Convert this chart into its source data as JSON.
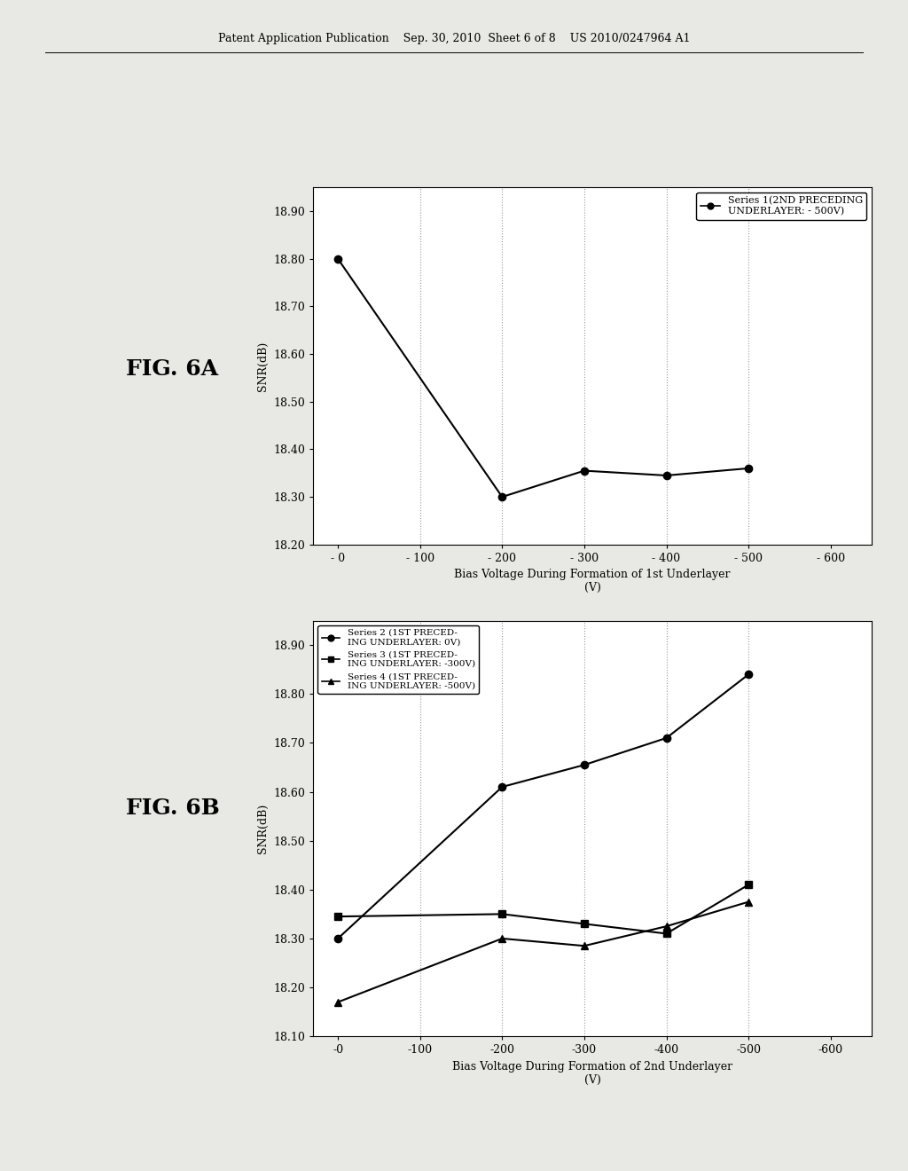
{
  "header_text": "Patent Application Publication    Sep. 30, 2010  Sheet 6 of 8    US 2010/0247964 A1",
  "fig6a": {
    "xlabel_line1": "Bias Voltage During Formation of 1st Underlayer",
    "xlabel_line2": "(V)",
    "ylabel": "SNR(dB)",
    "x_positions": [
      0,
      1,
      2,
      3,
      4,
      5,
      6
    ],
    "x_labels": [
      "- 0",
      "- 100",
      "- 200",
      "- 300",
      "- 400",
      "- 500",
      "- 600"
    ],
    "xlim": [
      -0.3,
      6.5
    ],
    "ylim": [
      18.2,
      18.95
    ],
    "yticks": [
      18.2,
      18.3,
      18.4,
      18.5,
      18.6,
      18.7,
      18.8,
      18.9
    ],
    "series1": {
      "label": "Series 1(2ND PRECEDING\nUNDERLAYER: - 500V)",
      "x": [
        0,
        2,
        3,
        4,
        5
      ],
      "y": [
        18.8,
        18.3,
        18.355,
        18.345,
        18.36
      ],
      "color": "black",
      "marker": "o",
      "markersize": 6,
      "linewidth": 1.5
    },
    "fig_label": "FIG. 6A",
    "grid_x_positions": [
      1,
      2,
      3,
      4,
      5
    ]
  },
  "fig6b": {
    "xlabel_line1": "Bias Voltage During Formation of 2nd Underlayer",
    "xlabel_line2": "(V)",
    "ylabel": "SNR(dB)",
    "x_positions": [
      0,
      1,
      2,
      3,
      4,
      5,
      6
    ],
    "x_labels": [
      "-0",
      "-100",
      "-200",
      "-300",
      "-400",
      "-500",
      "-600"
    ],
    "xlim": [
      -0.3,
      6.5
    ],
    "ylim": [
      18.1,
      18.95
    ],
    "yticks": [
      18.1,
      18.2,
      18.3,
      18.4,
      18.5,
      18.6,
      18.7,
      18.8,
      18.9
    ],
    "series2": {
      "label": "Series 2 (1ST PRECED-\nING UNDERLAYER: 0V)",
      "x": [
        0,
        2,
        3,
        4,
        5
      ],
      "y": [
        18.3,
        18.61,
        18.655,
        18.71,
        18.84
      ],
      "color": "black",
      "marker": "o",
      "markersize": 6,
      "linewidth": 1.5
    },
    "series3": {
      "label": "Series 3 (1ST PRECED-\nING UNDERLAYER: -300V)",
      "x": [
        0,
        2,
        3,
        4,
        5
      ],
      "y": [
        18.345,
        18.35,
        18.33,
        18.31,
        18.41
      ],
      "color": "black",
      "marker": "s",
      "markersize": 6,
      "linewidth": 1.5
    },
    "series4": {
      "label": "Series 4 (1ST PRECED-\nING UNDERLAYER: -500V)",
      "x": [
        0,
        2,
        3,
        4,
        5
      ],
      "y": [
        18.17,
        18.3,
        18.285,
        18.325,
        18.375
      ],
      "color": "black",
      "marker": "^",
      "markersize": 6,
      "linewidth": 1.5
    },
    "fig_label": "FIG. 6B",
    "grid_x_positions": [
      1,
      2,
      3,
      4,
      5
    ]
  },
  "background_color": "#e8e8e4",
  "plot_bg_color": "#ffffff",
  "grid_color": "#999999",
  "grid_style": ":"
}
